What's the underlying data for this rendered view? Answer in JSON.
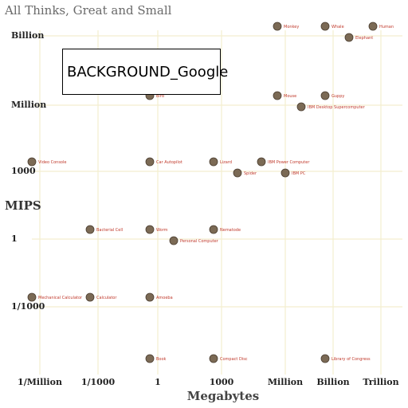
{
  "chart_data": {
    "type": "scatter",
    "title": "All Thinks, Great and Small",
    "xlabel": "Megabytes",
    "ylabel": "MIPS",
    "x_scale": "log",
    "y_scale": "log",
    "x_ticks": [
      "1/Million",
      "1/1000",
      "1",
      "1000",
      "Million",
      "Billion",
      "Trillion"
    ],
    "y_ticks": [
      "1/1000",
      "1",
      "1000",
      "Million",
      "Billion"
    ],
    "grid": true,
    "points": [
      {
        "label": "Whale",
        "x": "Billion",
        "y": "Billion"
      },
      {
        "label": "Elephant",
        "x": "Billion",
        "y": "Billion"
      },
      {
        "label": "Human",
        "x": "Billion",
        "y": "Billion"
      },
      {
        "label": "Monkey",
        "x": "Million",
        "y": "Billion"
      },
      {
        "label": "Mouse",
        "x": "Million",
        "y": "Million"
      },
      {
        "label": "IBM Desktop Supercomputer",
        "x": "Million",
        "y": "Million"
      },
      {
        "label": "Guppy",
        "x": "Million",
        "y": "Million"
      },
      {
        "label": "Lizard",
        "x": "1000",
        "y": "1000"
      },
      {
        "label": "Spider",
        "x": "1000",
        "y": "1000"
      },
      {
        "label": "IBM Power Computer",
        "x": "1000",
        "y": "1000"
      },
      {
        "label": "IBM PC",
        "x": "1000",
        "y": "1000"
      },
      {
        "label": "Bird",
        "x": "1",
        "y": "Million"
      },
      {
        "label": "Video Console",
        "x": "1/Million",
        "y": "1000"
      },
      {
        "label": "Car Autopilot",
        "x": "1",
        "y": "1000"
      },
      {
        "label": "Worm",
        "x": "1",
        "y": "1"
      },
      {
        "label": "Personal Computer",
        "x": "1",
        "y": "1"
      },
      {
        "label": "Bacterial Cell",
        "x": "1/1000",
        "y": "1"
      },
      {
        "label": "Amoeba",
        "x": "1",
        "y": "1/1000"
      },
      {
        "label": "Nematode",
        "x": "1000",
        "y": "1"
      },
      {
        "label": "Mechanical Calculator",
        "x": "1/Million",
        "y": "1/1000"
      },
      {
        "label": "Calculator",
        "x": "1/1000",
        "y": "1/1000"
      },
      {
        "label": "Book",
        "x": "1",
        "y": "1/Billion"
      },
      {
        "label": "Compact Disc",
        "x": "1000",
        "y": "1/Billion"
      },
      {
        "label": "Library of Congress",
        "x": "Billion",
        "y": "1/Billion"
      }
    ]
  },
  "overlay": {
    "text": "BACKGROUND_Google"
  },
  "colors": {
    "grid": "#f3eecf",
    "label": "#c0392b"
  }
}
